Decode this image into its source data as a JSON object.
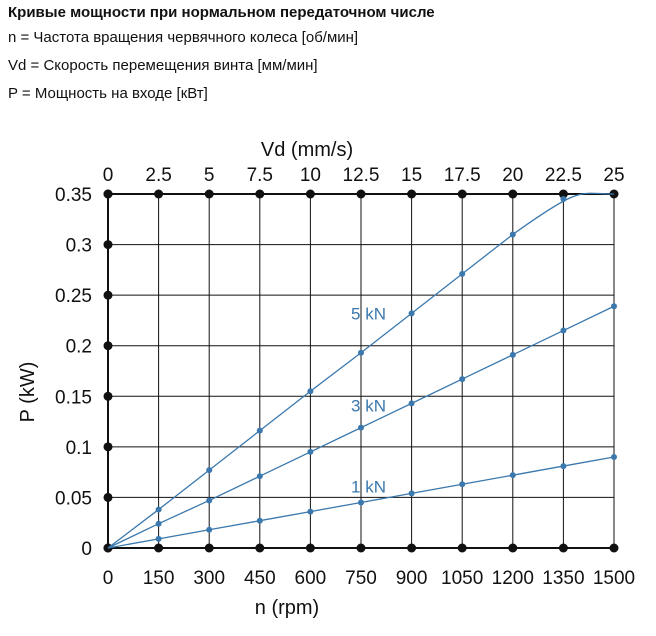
{
  "header": {
    "title": "Кривые мощности при нормальном передаточном числе",
    "lines": [
      "n = Частота вращения червячного колеса [об/мин]",
      "Vd = Скорость перемещения винта [мм/мин]",
      "P = Мощность на входе [кВт]"
    ]
  },
  "colors": {
    "series": "#3a78ad",
    "grid": "#111111"
  },
  "chart_data": {
    "type": "line",
    "xlabel": "n (rpm)",
    "x2label": "Vd (mm/s)",
    "ylabel": "P (kW)",
    "xlim": [
      0,
      1500
    ],
    "ylim": [
      0,
      0.35
    ],
    "x_ticks": [
      "0",
      "150",
      "300",
      "450",
      "600",
      "750",
      "900",
      "1050",
      "1200",
      "1350",
      "1500"
    ],
    "x2_ticks": [
      "0",
      "2.5",
      "5",
      "7.5",
      "10",
      "12.5",
      "15",
      "17.5",
      "20",
      "22.5",
      "25"
    ],
    "y_ticks": [
      "0",
      "0.05",
      "0.1",
      "0.15",
      "0.2",
      "0.25",
      "0.3",
      "0.35"
    ],
    "grid": true,
    "x": [
      0,
      150,
      300,
      450,
      600,
      750,
      900,
      1050,
      1200,
      1350,
      1500
    ],
    "series": [
      {
        "name": "5 kN",
        "values": [
          0,
          0.038,
          0.077,
          0.116,
          0.155,
          0.193,
          0.232,
          0.271,
          0.31,
          0.345,
          0.35
        ]
      },
      {
        "name": "3 kN",
        "values": [
          0,
          0.024,
          0.047,
          0.071,
          0.095,
          0.119,
          0.143,
          0.167,
          0.191,
          0.215,
          0.239
        ]
      },
      {
        "name": "1 kN",
        "values": [
          0,
          0.009,
          0.018,
          0.027,
          0.036,
          0.045,
          0.054,
          0.063,
          0.072,
          0.081,
          0.09
        ]
      }
    ]
  }
}
